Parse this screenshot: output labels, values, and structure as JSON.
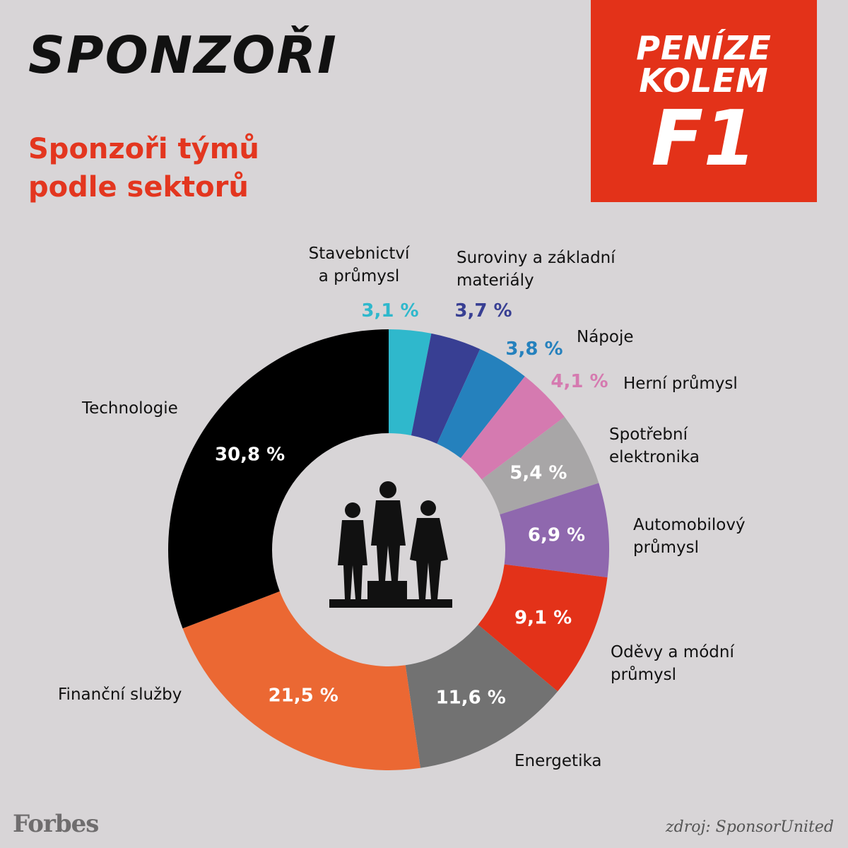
{
  "header": {
    "title": "SPONZOŘI",
    "subtitle_lines": [
      "Sponzoři týmů",
      "podle sektorů"
    ]
  },
  "brand_box": {
    "line1": "PENÍZE",
    "line2": "KOLEM",
    "line3": "F1",
    "color": "#e33219"
  },
  "chart_data": {
    "type": "pie",
    "donut": true,
    "title": "Sponzoři týmů podle sektorů",
    "center_icon": "podium-silhouette-icon",
    "slices": [
      {
        "label_lines": [
          "Stavebnictví",
          "a průmysl"
        ],
        "value": 3.1,
        "value_label": "3,1 %",
        "color": "#2fb8cc"
      },
      {
        "label_lines": [
          "Suroviny a základní",
          "materiály"
        ],
        "value": 3.7,
        "value_label": "3,7 %",
        "color": "#383f93"
      },
      {
        "label_lines": [
          "Nápoje"
        ],
        "value": 3.8,
        "value_label": "3,8 %",
        "color": "#2581bd"
      },
      {
        "label_lines": [
          "Herní průmysl"
        ],
        "value": 4.1,
        "value_label": "4,1 %",
        "color": "#d57ab0"
      },
      {
        "label_lines": [
          "Spotřební",
          "elektronika"
        ],
        "value": 5.4,
        "value_label": "5,4 %",
        "color": "#a8a6a7"
      },
      {
        "label_lines": [
          "Automobilový",
          "průmysl"
        ],
        "value": 6.9,
        "value_label": "6,9 %",
        "color": "#8f68ae"
      },
      {
        "label_lines": [
          "Oděvy a módní",
          "průmysl"
        ],
        "value": 9.1,
        "value_label": "9,1 %",
        "color": "#e33219"
      },
      {
        "label_lines": [
          "Energetika"
        ],
        "value": 11.6,
        "value_label": "11,6 %",
        "color": "#727272"
      },
      {
        "label_lines": [
          "Finanční služby"
        ],
        "value": 21.5,
        "value_label": "21,5 %",
        "color": "#eb6833"
      },
      {
        "label_lines": [
          "Technologie"
        ],
        "value": 30.8,
        "value_label": "30,8 %",
        "color": "#000000"
      }
    ]
  },
  "footer": {
    "logo": "Forbes",
    "source": "zdroj: SponsorUnited"
  }
}
